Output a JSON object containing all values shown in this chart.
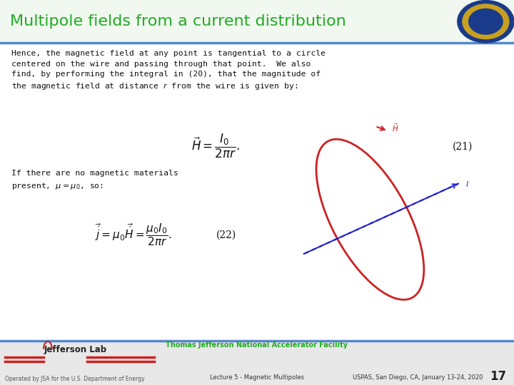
{
  "title": "Multipole fields from a current distribution",
  "title_color": "#22aa22",
  "bg_color": "#ffffff",
  "header_line_color": "#5588cc",
  "body_text_1": "Hence, the magnetic field at any point is tangential to a circle\ncentered on the wire and passing through that point.  We also\nfind, by performing the integral in (20), that the magnitude of\nthe magnetic field at distance $r$ from the wire is given by:",
  "eq1": "$\\vec{H} = \\dfrac{I_0}{2\\pi r}.$",
  "eq1_label": "(21)",
  "body_text_2": "If there are no magnetic materials\npresent, $\\mu = \\mu_0$, so:",
  "eq2": "$\\vec{\\dot{j}} = \\mu_0 \\vec{\\dot{H}} = \\dfrac{\\mu_0 I_0}{2\\pi r}.$",
  "eq2_label": "(22)",
  "footer_center": "Thomas Jefferson National Accelerator Facility",
  "footer_left": "Operated by JSA for the U.S. Department of Energy",
  "footer_lecture": "Lecture 5 - Magnetic Multipoles",
  "footer_conf": "USPAS, San Diego, CA, January 13-24, 2020",
  "page_num": "17",
  "ellipse_color": "#cc2222",
  "arrow_color": "#2222cc",
  "title_bg_color": "#f0f8f0",
  "footer_bg_color": "#e8e8e8",
  "footer_line_color": "#5588cc",
  "jlab_red": "#cc2222",
  "jlab_text_color": "#222222"
}
